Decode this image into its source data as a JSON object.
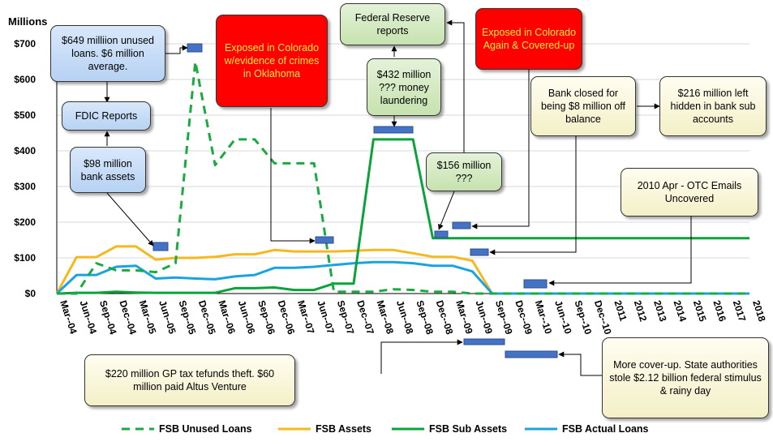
{
  "chart_data": {
    "type": "line",
    "ylabel": "Millions",
    "ylim": [
      0,
      700
    ],
    "yticks": [
      "$0",
      "$100",
      "$200",
      "$300",
      "$400",
      "$500",
      "$600",
      "$700"
    ],
    "categories": [
      "Mar--04",
      "Jun--04",
      "Sep--04",
      "Dec--04",
      "Mar--05",
      "Jun--05",
      "Sep--05",
      "Dec--05",
      "Mar--06",
      "Jun--06",
      "Sep--06",
      "Dec--06",
      "Mar--07",
      "Jun--07",
      "Sep--07",
      "Dec--07",
      "Mar--08",
      "Jun--08",
      "Sep--08",
      "Dec--08",
      "Mar--09",
      "Jun--09",
      "Sep--09",
      "Dec--09",
      "Mar--10",
      "Jun--10",
      "Sep--10",
      "Dec--10",
      "2011",
      "2012",
      "2013",
      "2014",
      "2015",
      "2016",
      "2017",
      "2018"
    ],
    "series": [
      {
        "name": "FSB Unused Loans",
        "color": "#1aab40",
        "dash": true,
        "values": [
          0,
          0,
          85,
          65,
          65,
          60,
          85,
          650,
          360,
          432,
          432,
          365,
          365,
          365,
          5,
          5,
          5,
          12,
          10,
          5,
          5,
          0,
          0,
          0,
          0,
          0,
          0,
          0,
          0,
          0,
          0,
          0,
          0,
          0,
          0,
          0
        ]
      },
      {
        "name": "FSB Assets",
        "color": "#f5b91e",
        "dash": false,
        "values": [
          0,
          102,
          102,
          132,
          132,
          95,
          100,
          100,
          103,
          110,
          110,
          122,
          118,
          118,
          118,
          120,
          122,
          122,
          113,
          103,
          103,
          92,
          0,
          0,
          0,
          0,
          0,
          0,
          0,
          0,
          0,
          0,
          0,
          0,
          0,
          0
        ]
      },
      {
        "name": "FSB Sub Assets",
        "color": "#0aa33a",
        "dash": false,
        "values": [
          0,
          2,
          2,
          5,
          3,
          2,
          2,
          2,
          2,
          15,
          15,
          17,
          10,
          10,
          28,
          28,
          432,
          432,
          432,
          155,
          155,
          155,
          155,
          155,
          155,
          155,
          155,
          155,
          155,
          155,
          155,
          155,
          155,
          155,
          155,
          155
        ]
      },
      {
        "name": "FSB Actual Loans",
        "color": "#1aa3e0",
        "dash": false,
        "values": [
          0,
          52,
          52,
          75,
          78,
          42,
          45,
          42,
          40,
          48,
          52,
          72,
          72,
          75,
          80,
          85,
          88,
          88,
          85,
          78,
          78,
          62,
          0,
          0,
          0,
          0,
          0,
          0,
          0,
          0,
          0,
          0,
          0,
          0,
          0,
          0
        ]
      }
    ],
    "legend_position": "bottom",
    "annotations": [
      {
        "id": "a1",
        "text": "$649 milliion unused loans. $6 million average.",
        "style": "blue"
      },
      {
        "id": "a2",
        "text": "FDIC Reports",
        "style": "blue"
      },
      {
        "id": "a3",
        "text": "$98 million bank assets",
        "style": "blue"
      },
      {
        "id": "a4",
        "text": "Exposed in Colorado w/evidence of crimes in Oklahoma",
        "style": "red"
      },
      {
        "id": "a5",
        "text": "Federal Reserve reports",
        "style": "green"
      },
      {
        "id": "a6",
        "text": "$432 million ??? money laundering",
        "style": "green"
      },
      {
        "id": "a7",
        "text": "$156 million ???",
        "style": "green"
      },
      {
        "id": "a8",
        "text": "Exposed in Colorado Again & Covered-up",
        "style": "red"
      },
      {
        "id": "a9",
        "text": "Bank closed for being $8 million off balance",
        "style": "yellow"
      },
      {
        "id": "a10",
        "text": "$216 million left hidden in bank sub accounts",
        "style": "yellow"
      },
      {
        "id": "a11",
        "text": "2010 Apr - OTC Emails Uncovered",
        "style": "yellow"
      },
      {
        "id": "a12",
        "text": "$220 million GP tax tefunds theft. $60 million paid Altus Venture",
        "style": "yellow"
      },
      {
        "id": "a13",
        "text": "More cover-up.  State authorities stole $2.12 billion federal stimulus & rainy day",
        "style": "yellow"
      }
    ]
  }
}
